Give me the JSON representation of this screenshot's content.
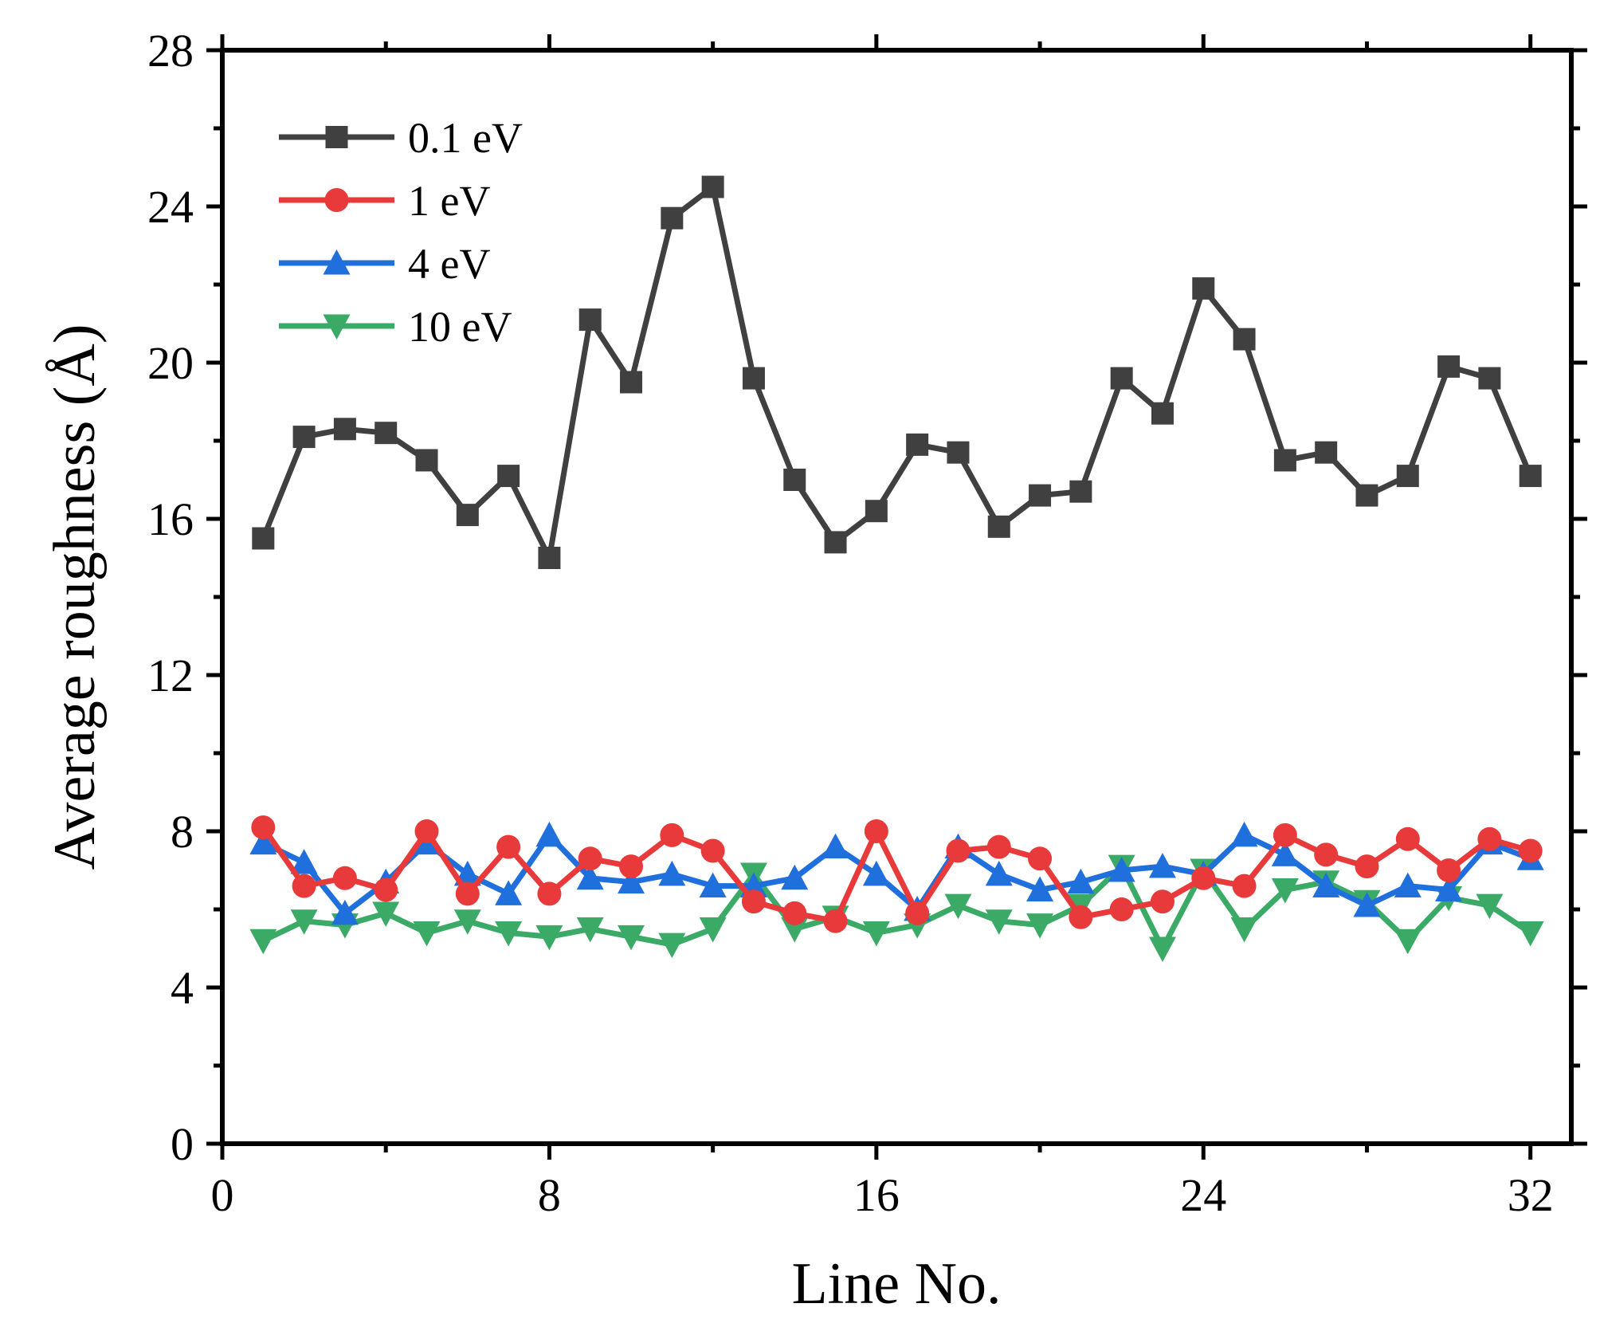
{
  "chart_data": {
    "type": "line",
    "title": "",
    "xlabel": "Line No.",
    "ylabel": "Average roughness (Å)",
    "xlim": [
      0,
      33
    ],
    "ylim": [
      0,
      28
    ],
    "xticks": [
      0,
      8,
      16,
      24,
      32
    ],
    "yticks": [
      0,
      4,
      8,
      12,
      16,
      20,
      24,
      28
    ],
    "legend_position": "top-left",
    "x": [
      1,
      2,
      3,
      4,
      5,
      6,
      7,
      8,
      9,
      10,
      11,
      12,
      13,
      14,
      15,
      16,
      17,
      18,
      19,
      20,
      21,
      22,
      23,
      24,
      25,
      26,
      27,
      28,
      29,
      30,
      31,
      32
    ],
    "series": [
      {
        "name": "0.1 eV",
        "color": "#404040",
        "marker": "square",
        "values": [
          15.5,
          18.1,
          18.3,
          18.2,
          17.5,
          16.1,
          17.1,
          15.0,
          21.1,
          19.5,
          23.7,
          24.5,
          19.6,
          17.0,
          15.4,
          16.2,
          17.9,
          17.7,
          15.8,
          16.6,
          16.7,
          19.6,
          18.7,
          21.9,
          20.6,
          17.5,
          17.7,
          16.6,
          17.1,
          19.9,
          19.6,
          17.1
        ]
      },
      {
        "name": "1 eV",
        "color": "#e83a3a",
        "marker": "circle",
        "values": [
          8.1,
          6.6,
          6.8,
          6.5,
          8.0,
          6.4,
          7.6,
          6.4,
          7.3,
          7.1,
          7.9,
          7.5,
          6.2,
          5.9,
          5.7,
          8.0,
          5.9,
          7.5,
          7.6,
          7.3,
          5.8,
          6.0,
          6.2,
          6.8,
          6.6,
          7.9,
          7.4,
          7.1,
          7.8,
          7.0,
          7.8,
          7.5
        ]
      },
      {
        "name": "4 eV",
        "color": "#1f6fdc",
        "marker": "triangle-up",
        "values": [
          7.7,
          7.2,
          5.9,
          6.7,
          7.7,
          6.9,
          6.4,
          7.9,
          6.8,
          6.7,
          6.9,
          6.6,
          6.6,
          6.8,
          7.6,
          6.9,
          6.0,
          7.6,
          6.9,
          6.5,
          6.7,
          7.0,
          7.1,
          6.9,
          7.9,
          7.4,
          6.6,
          6.1,
          6.6,
          6.5,
          7.7,
          7.3
        ]
      },
      {
        "name": "10 eV",
        "color": "#3aaa66",
        "marker": "triangle-down",
        "values": [
          5.2,
          5.7,
          5.6,
          5.9,
          5.4,
          5.7,
          5.4,
          5.3,
          5.5,
          5.3,
          5.1,
          5.5,
          6.9,
          5.5,
          5.8,
          5.4,
          5.6,
          6.1,
          5.7,
          5.6,
          6.1,
          7.1,
          5.0,
          7.0,
          5.5,
          6.5,
          6.7,
          6.2,
          5.2,
          6.3,
          6.1,
          5.4
        ]
      }
    ]
  }
}
